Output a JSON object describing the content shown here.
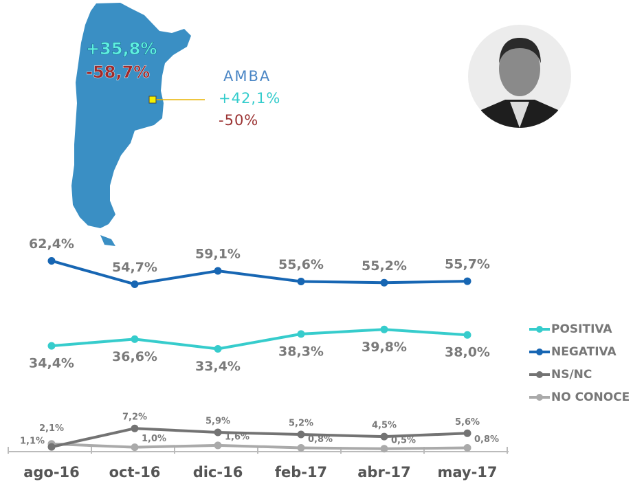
{
  "map": {
    "region_label": "AMBA",
    "national_positive": "+35,8%",
    "national_negative": "-58,7%",
    "amba_positive": "+42,1%",
    "amba_negative": "-50%"
  },
  "chart_data": {
    "type": "line",
    "categories": [
      "ago-16",
      "oct-16",
      "dic-16",
      "feb-17",
      "abr-17",
      "may-17"
    ],
    "ylim": [
      0,
      65
    ],
    "series": [
      {
        "name": "POSITIVA",
        "color": "#36cccc",
        "values": [
          34.4,
          36.6,
          33.4,
          38.3,
          39.8,
          38.0
        ],
        "value_labels": [
          "34,4%",
          "36,6%",
          "33,4%",
          "38,3%",
          "39,8%",
          "38,0%"
        ]
      },
      {
        "name": "NEGATIVA",
        "color": "#1766b3",
        "values": [
          62.4,
          54.7,
          59.1,
          55.6,
          55.2,
          55.7
        ],
        "value_labels": [
          "62,4%",
          "54,7%",
          "59,1%",
          "55,6%",
          "55,2%",
          "55,7%"
        ]
      },
      {
        "name": "NS/NC",
        "color": "#737373",
        "values": [
          1.1,
          7.2,
          5.9,
          5.2,
          4.5,
          5.6
        ],
        "value_labels": [
          "1,1%",
          "7,2%",
          "5,9%",
          "5,2%",
          "4,5%",
          "5,6%"
        ]
      },
      {
        "name": "NO CONOCE",
        "color": "#aaaaaa",
        "values": [
          2.1,
          1.0,
          1.6,
          0.8,
          0.5,
          0.8
        ],
        "value_labels": [
          "2,1%",
          "1,0%",
          "1,6%",
          "0,8%",
          "0,5%",
          "0,8%"
        ]
      }
    ]
  }
}
